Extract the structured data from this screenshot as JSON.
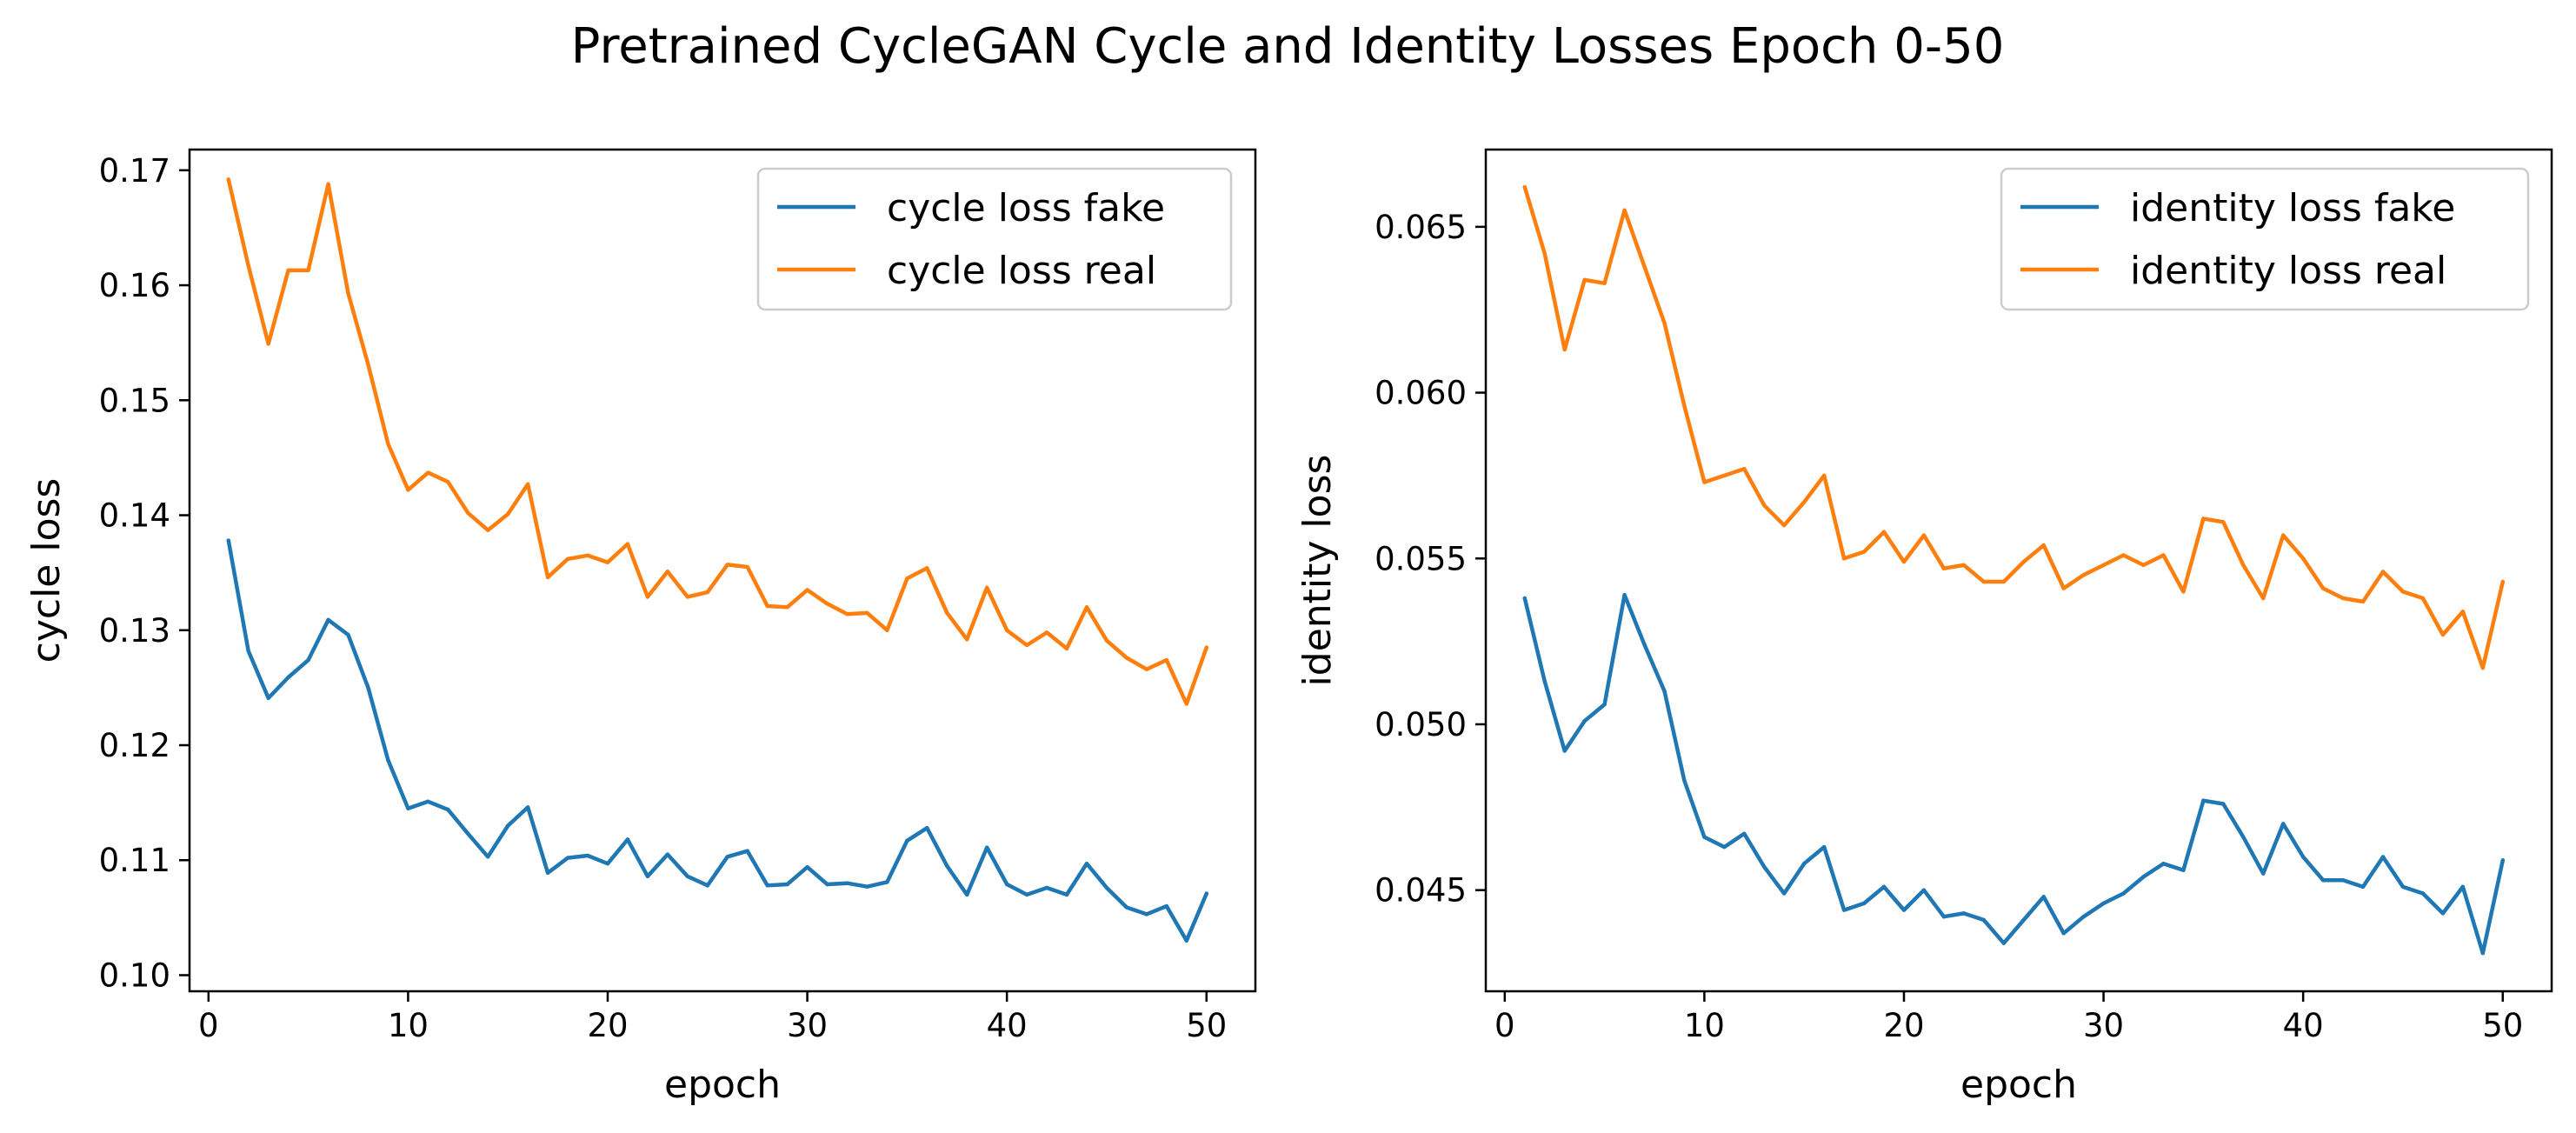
{
  "figure": {
    "title": "Pretrained CycleGAN Cycle and Identity Losses Epoch 0-50"
  },
  "colors": {
    "fake": "#1f77b4",
    "real": "#ff7f0e"
  },
  "chart_data": [
    {
      "type": "line",
      "title": "",
      "xlabel": "epoch",
      "ylabel": "cycle loss",
      "xlim": [
        -0.95,
        52.45
      ],
      "ylim": [
        0.0986,
        0.1718
      ],
      "xticks": [
        "0",
        "10",
        "20",
        "30",
        "40",
        "50"
      ],
      "yticks": [
        "0.10",
        "0.11",
        "0.12",
        "0.13",
        "0.14",
        "0.15",
        "0.16",
        "0.17"
      ],
      "legend_position": "top-right",
      "grid": false,
      "x": [
        1,
        2,
        3,
        4,
        5,
        6,
        7,
        8,
        9,
        10,
        11,
        12,
        13,
        14,
        15,
        16,
        17,
        18,
        19,
        20,
        21,
        22,
        23,
        24,
        25,
        26,
        27,
        28,
        29,
        30,
        31,
        32,
        33,
        34,
        35,
        36,
        37,
        38,
        39,
        40,
        41,
        42,
        43,
        44,
        45,
        46,
        47,
        48,
        49,
        50
      ],
      "series": [
        {
          "name": "cycle loss fake",
          "color": "#1f77b4",
          "values": [
            0.1378,
            0.1282,
            0.1241,
            0.1259,
            0.1274,
            0.1309,
            0.1296,
            0.125,
            0.1187,
            0.1145,
            0.1151,
            0.1144,
            0.1123,
            0.1103,
            0.113,
            0.1146,
            0.1089,
            0.1102,
            0.1104,
            0.1097,
            0.1118,
            0.1086,
            0.1105,
            0.1086,
            0.1078,
            0.1103,
            0.1108,
            0.1078,
            0.1079,
            0.1094,
            0.1079,
            0.108,
            0.1077,
            0.1081,
            0.1117,
            0.1128,
            0.1095,
            0.107,
            0.1111,
            0.1079,
            0.107,
            0.1076,
            0.107,
            0.1097,
            0.1076,
            0.1059,
            0.1053,
            0.106,
            0.103,
            0.1071
          ]
        },
        {
          "name": "cycle loss real",
          "color": "#ff7f0e",
          "values": [
            0.1692,
            0.1617,
            0.1549,
            0.1613,
            0.1613,
            0.1688,
            0.1593,
            0.1531,
            0.1462,
            0.1422,
            0.1437,
            0.1429,
            0.1402,
            0.1387,
            0.1401,
            0.1427,
            0.1346,
            0.1362,
            0.1365,
            0.1359,
            0.1375,
            0.1329,
            0.1351,
            0.1329,
            0.1333,
            0.1357,
            0.1355,
            0.1321,
            0.132,
            0.1335,
            0.1323,
            0.1314,
            0.1315,
            0.13,
            0.1345,
            0.1354,
            0.1315,
            0.1292,
            0.1337,
            0.13,
            0.1287,
            0.1298,
            0.1284,
            0.132,
            0.1291,
            0.1276,
            0.1266,
            0.1274,
            0.1236,
            0.1285
          ]
        }
      ]
    },
    {
      "type": "line",
      "title": "",
      "xlabel": "epoch",
      "ylabel": "identity loss",
      "xlim": [
        -0.95,
        52.45
      ],
      "ylim": [
        0.04195,
        0.06733
      ],
      "xticks": [
        "0",
        "10",
        "20",
        "30",
        "40",
        "50"
      ],
      "yticks": [
        "0.045",
        "0.050",
        "0.055",
        "0.060",
        "0.065"
      ],
      "legend_position": "top-right",
      "grid": false,
      "x": [
        1,
        2,
        3,
        4,
        5,
        6,
        7,
        8,
        9,
        10,
        11,
        12,
        13,
        14,
        15,
        16,
        17,
        18,
        19,
        20,
        21,
        22,
        23,
        24,
        25,
        26,
        27,
        28,
        29,
        30,
        31,
        32,
        33,
        34,
        35,
        36,
        37,
        38,
        39,
        40,
        41,
        42,
        43,
        44,
        45,
        46,
        47,
        48,
        49,
        50
      ],
      "series": [
        {
          "name": "identity loss fake",
          "color": "#1f77b4",
          "values": [
            0.0538,
            0.0513,
            0.0492,
            0.0501,
            0.0506,
            0.0539,
            0.0524,
            0.051,
            0.0483,
            0.0466,
            0.0463,
            0.0467,
            0.0457,
            0.0449,
            0.0458,
            0.0463,
            0.0444,
            0.0446,
            0.0451,
            0.0444,
            0.045,
            0.0442,
            0.0443,
            0.0441,
            0.0434,
            0.0441,
            0.0448,
            0.0437,
            0.0442,
            0.0446,
            0.0449,
            0.0454,
            0.0458,
            0.0456,
            0.0477,
            0.0476,
            0.0466,
            0.0455,
            0.047,
            0.046,
            0.0453,
            0.0453,
            0.0451,
            0.046,
            0.0451,
            0.0449,
            0.0443,
            0.0451,
            0.0431,
            0.0459
          ]
        },
        {
          "name": "identity loss real",
          "color": "#ff7f0e",
          "values": [
            0.0662,
            0.0642,
            0.0613,
            0.0634,
            0.0633,
            0.0655,
            0.0638,
            0.0621,
            0.0596,
            0.0573,
            0.0575,
            0.0577,
            0.0566,
            0.056,
            0.0567,
            0.0575,
            0.055,
            0.0552,
            0.0558,
            0.0549,
            0.0557,
            0.0547,
            0.0548,
            0.0543,
            0.0543,
            0.0549,
            0.0554,
            0.0541,
            0.0545,
            0.0548,
            0.0551,
            0.0548,
            0.0551,
            0.054,
            0.0562,
            0.0561,
            0.0548,
            0.0538,
            0.0557,
            0.055,
            0.0541,
            0.0538,
            0.0537,
            0.0546,
            0.054,
            0.0538,
            0.0527,
            0.0534,
            0.0517,
            0.0543
          ]
        }
      ]
    }
  ]
}
